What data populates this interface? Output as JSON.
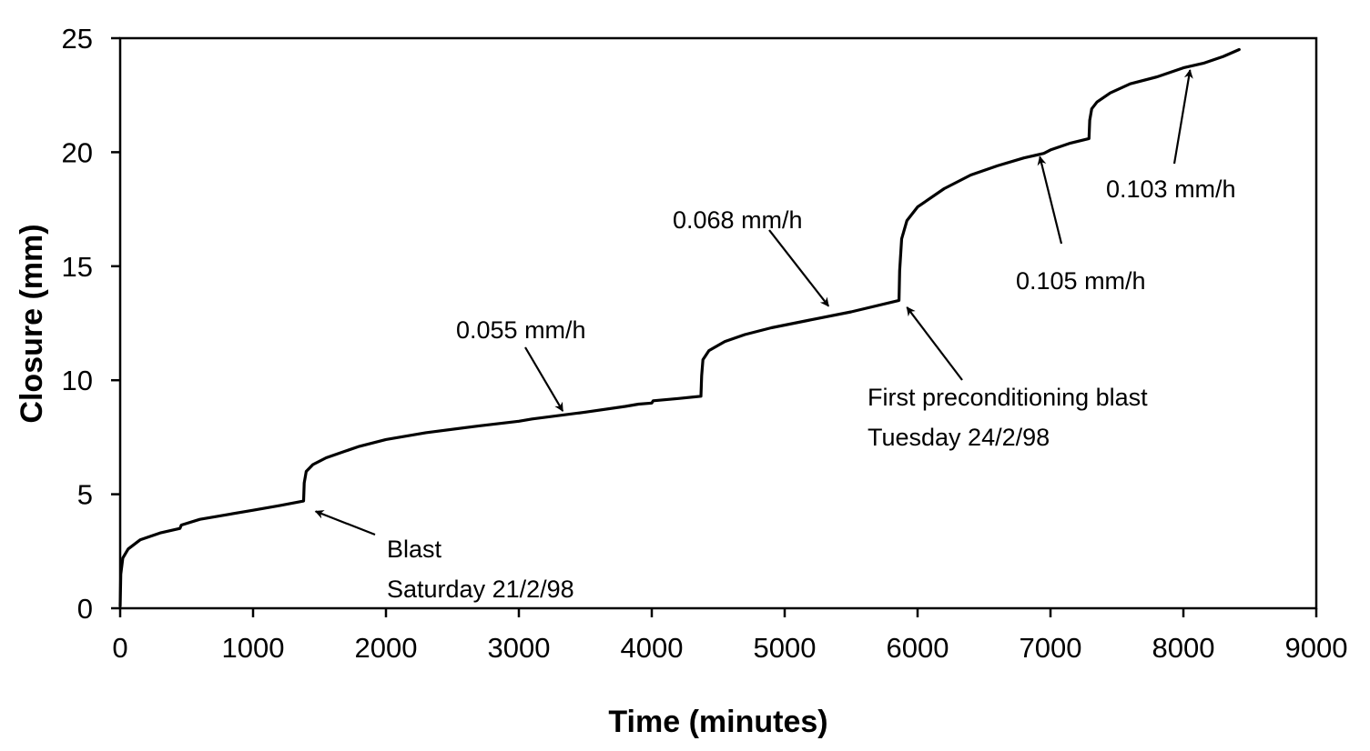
{
  "chart_data": {
    "type": "line",
    "title": "",
    "xlabel": "Time (minutes)",
    "ylabel": "Closure (mm)",
    "xlim": [
      0,
      9000
    ],
    "ylim": [
      0,
      25
    ],
    "xticks": [
      "0",
      "1000",
      "2000",
      "3000",
      "4000",
      "5000",
      "6000",
      "7000",
      "8000",
      "9000"
    ],
    "yticks": [
      "0",
      "5",
      "10",
      "15",
      "20",
      "25"
    ],
    "grid": false,
    "legend": "none",
    "series": [
      {
        "x": [
          0,
          5,
          20,
          60,
          150,
          300,
          450,
          460,
          600,
          800,
          1000,
          1200,
          1380,
          1385,
          1400,
          1450,
          1550,
          1700,
          1800,
          2000,
          2300,
          2700,
          3000,
          3100,
          3500,
          3800,
          3900,
          4000,
          4010,
          4200,
          4370,
          4375,
          4385,
          4430,
          4550,
          4700,
          4900,
          5200,
          5500,
          5860,
          5865,
          5880,
          5920,
          6000,
          6200,
          6400,
          6600,
          6800,
          6950,
          7000,
          7150,
          7290,
          7295,
          7310,
          7350,
          7450,
          7600,
          7800,
          8000,
          8150,
          8300,
          8420
        ],
        "y": [
          0.1,
          1.5,
          2.2,
          2.6,
          3.0,
          3.3,
          3.5,
          3.65,
          3.9,
          4.1,
          4.3,
          4.5,
          4.7,
          5.5,
          6.0,
          6.3,
          6.6,
          6.9,
          7.1,
          7.4,
          7.7,
          8.0,
          8.2,
          8.3,
          8.6,
          8.85,
          8.95,
          9.0,
          9.1,
          9.2,
          9.3,
          10.2,
          10.9,
          11.3,
          11.7,
          12.0,
          12.3,
          12.65,
          13.0,
          13.5,
          14.8,
          16.2,
          17.0,
          17.6,
          18.4,
          19.0,
          19.4,
          19.75,
          19.95,
          20.1,
          20.4,
          20.6,
          21.4,
          21.9,
          22.2,
          22.6,
          23.0,
          23.3,
          23.7,
          23.9,
          24.2,
          24.5
        ]
      }
    ],
    "annotations": [
      {
        "lines": [
          "Blast",
          "Saturday 21/2/98"
        ],
        "arrow_to": [
          1470,
          4.25
        ]
      },
      {
        "lines": [
          "0.055 mm/h"
        ],
        "arrow_to": [
          3330,
          8.65
        ]
      },
      {
        "lines": [
          "0.068 mm/h"
        ],
        "arrow_to": [
          5330,
          13.25
        ]
      },
      {
        "lines": [
          "First preconditioning blast",
          "Tuesday 24/2/98"
        ],
        "arrow_to": [
          5920,
          13.2
        ]
      },
      {
        "lines": [
          "0.105 mm/h"
        ],
        "arrow_to": [
          6920,
          19.8
        ]
      },
      {
        "lines": [
          "0.103 mm/h"
        ],
        "arrow_to": [
          8050,
          23.6
        ]
      }
    ]
  }
}
